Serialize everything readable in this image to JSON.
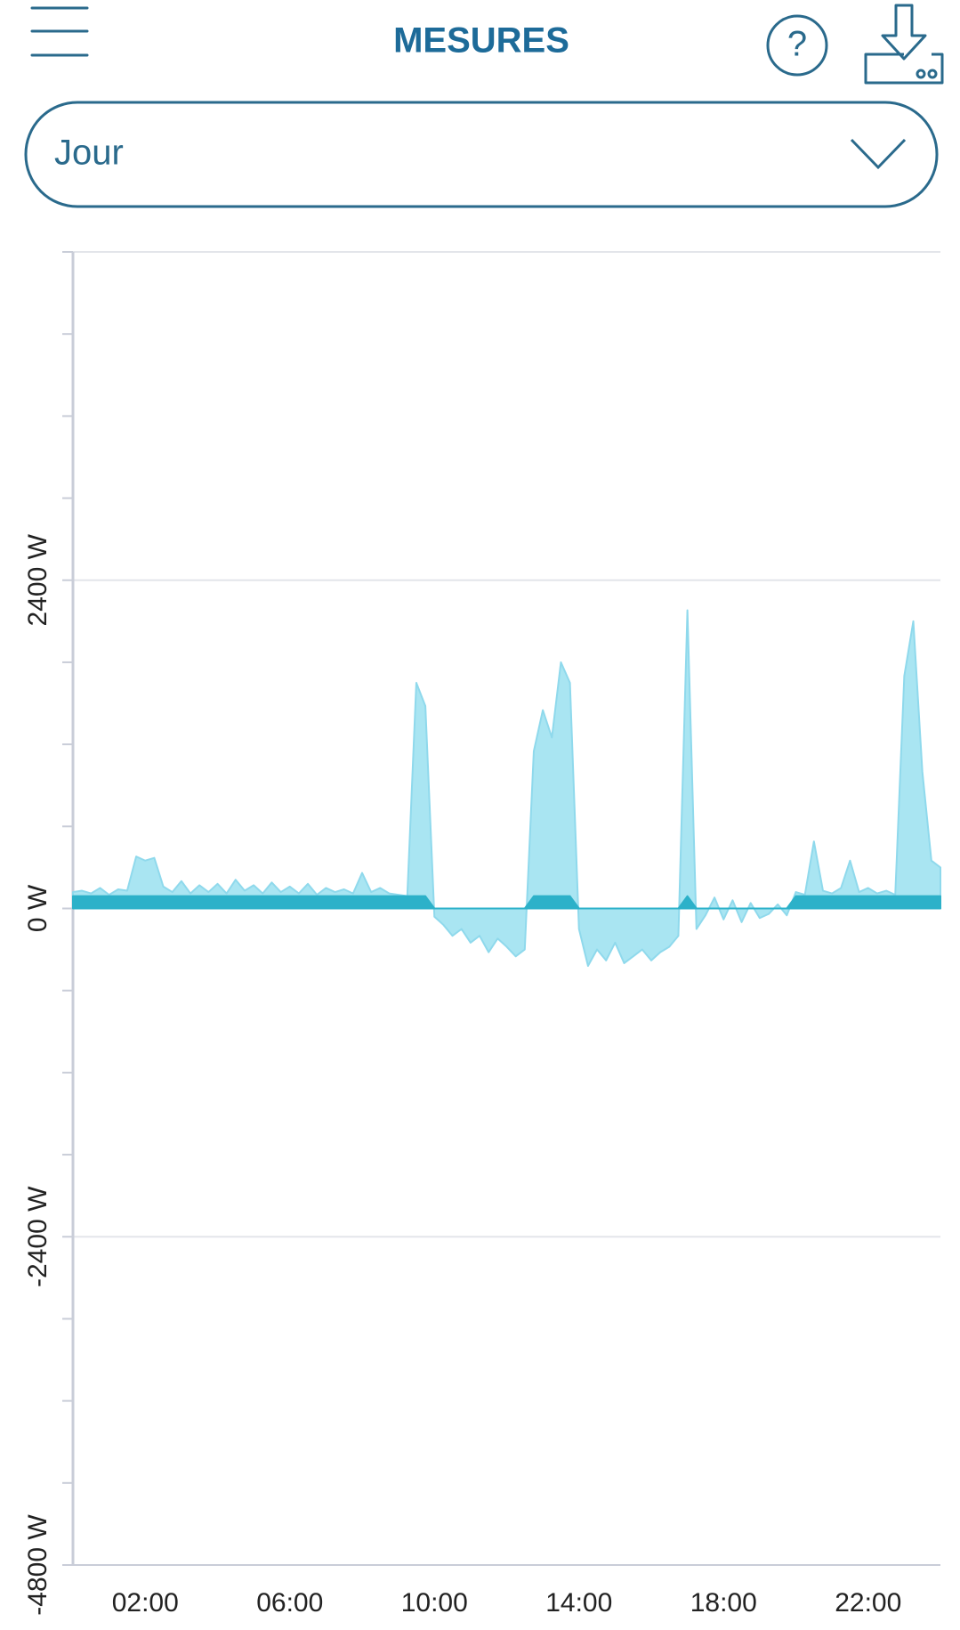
{
  "header": {
    "title": "MESURES",
    "help": "?"
  },
  "period_select": {
    "label": "Jour"
  },
  "chart_data": {
    "type": "area",
    "x": [
      0,
      0.25,
      0.5,
      0.75,
      1,
      1.25,
      1.5,
      1.75,
      2,
      2.25,
      2.5,
      2.75,
      3,
      3.25,
      3.5,
      3.75,
      4,
      4.25,
      4.5,
      4.75,
      5,
      5.25,
      5.5,
      5.75,
      6,
      6.25,
      6.5,
      6.75,
      7,
      7.25,
      7.5,
      7.75,
      8,
      8.25,
      8.5,
      8.75,
      9,
      9.25,
      9.5,
      9.75,
      10,
      10.25,
      10.5,
      10.75,
      11,
      11.25,
      11.5,
      11.75,
      12,
      12.25,
      12.5,
      12.75,
      13,
      13.25,
      13.5,
      13.75,
      14,
      14.25,
      14.5,
      14.75,
      15,
      15.25,
      15.5,
      15.75,
      16,
      16.25,
      16.5,
      16.75,
      17,
      17.25,
      17.5,
      17.75,
      18,
      18.25,
      18.5,
      18.75,
      19,
      19.25,
      19.5,
      19.75,
      20,
      20.25,
      20.5,
      20.75,
      21,
      21.25,
      21.5,
      21.75,
      22,
      22.25,
      22.5,
      22.75,
      23,
      23.25,
      23.5,
      23.75,
      24
    ],
    "series": [
      {
        "color": "#a9e5f2",
        "values": [
          120,
          130,
          110,
          150,
          100,
          140,
          130,
          380,
          350,
          370,
          160,
          120,
          200,
          110,
          170,
          120,
          180,
          110,
          210,
          130,
          170,
          110,
          190,
          120,
          160,
          110,
          180,
          100,
          150,
          120,
          140,
          110,
          260,
          120,
          150,
          110,
          100,
          90,
          1650,
          1480,
          -60,
          -120,
          -200,
          -150,
          -250,
          -200,
          -320,
          -220,
          -280,
          -350,
          -300,
          1150,
          1450,
          1250,
          1800,
          1650,
          -150,
          -420,
          -300,
          -380,
          -250,
          -400,
          -350,
          -300,
          -380,
          -320,
          -280,
          -200,
          2180,
          -150,
          -50,
          80,
          -80,
          60,
          -100,
          40,
          -70,
          -40,
          30,
          -50,
          120,
          100,
          490,
          130,
          110,
          150,
          350,
          120,
          150,
          110,
          130,
          100,
          1700,
          2100,
          1000,
          350,
          300
        ]
      },
      {
        "color": "#2cb1c9",
        "values": [
          90,
          90,
          90,
          90,
          90,
          90,
          90,
          90,
          90,
          90,
          90,
          90,
          90,
          90,
          90,
          90,
          90,
          90,
          90,
          90,
          90,
          90,
          90,
          90,
          90,
          90,
          90,
          90,
          90,
          90,
          90,
          90,
          90,
          90,
          90,
          90,
          90,
          90,
          90,
          90,
          0,
          0,
          0,
          0,
          0,
          0,
          0,
          0,
          0,
          0,
          0,
          90,
          90,
          90,
          90,
          90,
          0,
          0,
          0,
          0,
          0,
          0,
          0,
          0,
          0,
          0,
          0,
          0,
          90,
          0,
          0,
          0,
          0,
          0,
          0,
          0,
          0,
          0,
          0,
          0,
          90,
          90,
          90,
          90,
          90,
          90,
          90,
          90,
          90,
          90,
          90,
          90,
          90,
          90,
          90,
          90,
          90
        ]
      }
    ],
    "xlim": [
      0,
      24
    ],
    "xticks": [
      {
        "value": 2,
        "label": "02:00"
      },
      {
        "value": 6,
        "label": "06:00"
      },
      {
        "value": 10,
        "label": "10:00"
      },
      {
        "value": 14,
        "label": "14:00"
      },
      {
        "value": 18,
        "label": "18:00"
      },
      {
        "value": 22,
        "label": "22:00"
      }
    ],
    "ylim": [
      -4800,
      4800
    ],
    "yticks": [
      {
        "value": -4800,
        "label": "-4800 W"
      },
      {
        "value": -2400,
        "label": "-2400 W"
      },
      {
        "value": 0,
        "label": "0 W"
      },
      {
        "value": 2400,
        "label": "2400 W"
      }
    ],
    "minor_yticks": [
      -4200,
      -3600,
      -3000,
      -1800,
      -1200,
      -600,
      600,
      1200,
      1800,
      3000,
      3600,
      4200,
      4800
    ],
    "grid": true
  }
}
